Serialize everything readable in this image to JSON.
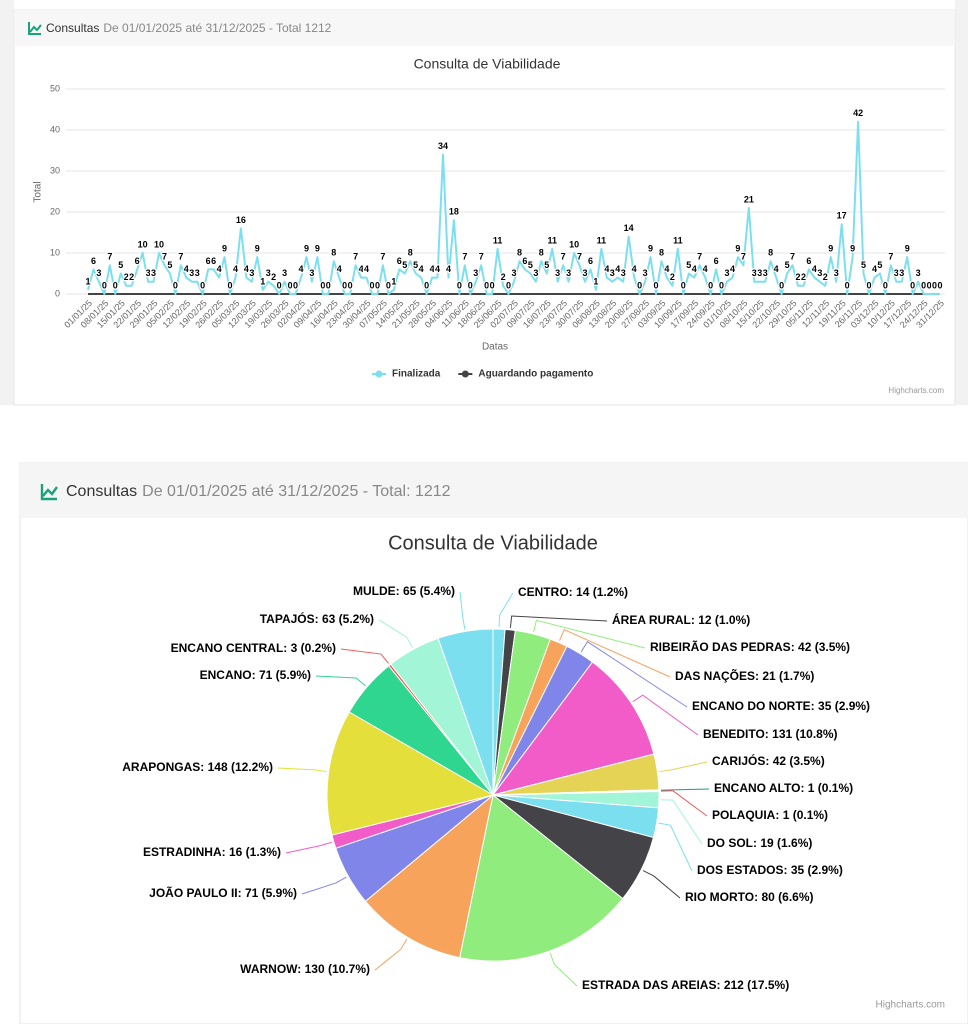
{
  "panels": [
    {
      "header": {
        "title": "Consultas",
        "subtitle": "De 01/01/2025 até 31/12/2025 - Total 1212"
      }
    },
    {
      "header": {
        "title": "Consultas",
        "subtitle": "De 01/01/2025 até 31/12/2025 - Total: 1212"
      }
    }
  ],
  "chart_data": [
    {
      "type": "line",
      "title": "Consulta de Viabilidade",
      "xlabel": "Datas",
      "ylabel": "Total",
      "categories": [
        "01/01/25",
        null,
        null,
        "08/01/25",
        null,
        null,
        "15/01/25",
        null,
        null,
        "22/01/25",
        null,
        null,
        "29/01/25",
        null,
        null,
        "05/02/25",
        null,
        null,
        "12/02/25",
        null,
        null,
        "19/02/25",
        null,
        null,
        "26/02/25",
        null,
        null,
        "05/03/25",
        null,
        null,
        "12/03/25",
        null,
        null,
        "19/03/25",
        null,
        null,
        "26/03/25",
        null,
        null,
        "02/04/25",
        null,
        null,
        "09/04/25",
        null,
        null,
        "16/04/25",
        null,
        null,
        "23/04/25",
        null,
        null,
        "30/04/25",
        null,
        null,
        "07/05/25",
        null,
        null,
        "14/05/25",
        null,
        null,
        "21/05/25",
        null,
        null,
        "28/05/25",
        null,
        null,
        "04/06/25",
        null,
        null,
        "11/06/25",
        null,
        null,
        "18/06/25",
        null,
        null,
        "25/06/25",
        null,
        null,
        "02/07/25",
        null,
        null,
        "09/07/25",
        null,
        null,
        "16/07/25",
        null,
        null,
        "23/07/25",
        null,
        null,
        "30/07/25",
        null,
        null,
        "06/08/25",
        null,
        null,
        "13/08/25",
        null,
        null,
        "20/08/25",
        null,
        null,
        "27/08/25",
        null,
        null,
        "03/09/25",
        null,
        null,
        "10/09/25",
        null,
        null,
        "17/09/25",
        null,
        null,
        "24/09/25",
        null,
        null,
        "01/10/25",
        null,
        null,
        "08/10/25",
        null,
        null,
        "15/10/25",
        null,
        null,
        "22/10/25",
        null,
        null,
        "29/10/25",
        null,
        null,
        "05/11/25",
        null,
        null,
        "12/11/25",
        null,
        null,
        "19/11/25",
        null,
        null,
        "26/11/25",
        null,
        null,
        "03/12/25",
        null,
        null,
        "10/12/25",
        null,
        null,
        "17/12/25",
        null,
        null,
        "24/12/25",
        null,
        null,
        "31/12/25"
      ],
      "series": [
        {
          "name": "Finalizada",
          "color": "#7cdfef",
          "values": [
            1,
            6,
            3,
            0,
            7,
            0,
            5,
            2,
            2,
            6,
            10,
            3,
            3,
            10,
            7,
            5,
            0,
            7,
            4,
            3,
            3,
            0,
            6,
            6,
            4,
            9,
            0,
            4,
            16,
            4,
            3,
            9,
            1,
            3,
            2,
            0,
            3,
            0,
            0,
            4,
            9,
            3,
            9,
            0,
            0,
            8,
            4,
            0,
            0,
            7,
            4,
            4,
            0,
            0,
            7,
            0,
            1,
            6,
            5,
            8,
            5,
            4,
            0,
            4,
            4,
            34,
            4,
            18,
            0,
            7,
            0,
            3,
            7,
            0,
            0,
            11,
            2,
            0,
            3,
            8,
            6,
            5,
            3,
            8,
            5,
            11,
            3,
            7,
            3,
            10,
            7,
            3,
            6,
            1,
            11,
            4,
            3,
            4,
            3,
            14,
            4,
            0,
            3,
            9,
            0,
            8,
            4,
            2,
            11,
            0,
            5,
            4,
            7,
            4,
            0,
            6,
            0,
            3,
            4,
            9,
            7,
            21,
            3,
            3,
            3,
            8,
            4,
            0,
            5,
            7,
            2,
            2,
            6,
            4,
            3,
            2,
            9,
            3,
            17,
            0,
            9,
            42,
            5,
            0,
            4,
            5,
            0,
            7,
            3,
            3,
            9,
            0,
            3,
            0,
            0,
            0,
            0
          ]
        },
        {
          "name": "Aguardando pagamento",
          "color": "#434348",
          "values": [
            0,
            0,
            0,
            0,
            0,
            0,
            0,
            0,
            0,
            0,
            0,
            0,
            0,
            0,
            0,
            0,
            0,
            0,
            0,
            0,
            0,
            0,
            0,
            0,
            0,
            0,
            0,
            0,
            0,
            0,
            0,
            0,
            0,
            0,
            0,
            0,
            0,
            0,
            0,
            0,
            0,
            0,
            0,
            0,
            0,
            0,
            0,
            0,
            0,
            0,
            0,
            0,
            0,
            0,
            0,
            0,
            0,
            0,
            0,
            0,
            0,
            0,
            0,
            0,
            0,
            0,
            0,
            0,
            0,
            0,
            0,
            0,
            0,
            0,
            0,
            0,
            0,
            0,
            0,
            0,
            0,
            0,
            0,
            0,
            0,
            0,
            0,
            0,
            0,
            0,
            0,
            0,
            0,
            0,
            0,
            0,
            0,
            0,
            0,
            0,
            0,
            0,
            0,
            0,
            0,
            0,
            0,
            0,
            0,
            0,
            0,
            0,
            0,
            0,
            0,
            0,
            0,
            0,
            0,
            0,
            0,
            0,
            0,
            0,
            0,
            0,
            0,
            0,
            0,
            0,
            0,
            0,
            0,
            0,
            0,
            0,
            0,
            0,
            0,
            0,
            0,
            0,
            0,
            0,
            0,
            0,
            0,
            0,
            0,
            0,
            0,
            0,
            0,
            0,
            0,
            0,
            0
          ]
        }
      ],
      "ylim": [
        0,
        50
      ],
      "yticks": [
        0,
        10,
        20,
        30,
        40,
        50
      ],
      "grid": true,
      "legend": "bottom",
      "credits": "Highcharts.com"
    },
    {
      "type": "pie",
      "title": "Consulta de Viabilidade",
      "categories": [
        "CENTRO",
        "ÁREA RURAL",
        "RIBEIRÃO DAS PEDRAS",
        "DAS NAÇÕES",
        "ENCANO DO NORTE",
        "BENEDITO",
        "CARIJÓS",
        "ENCANO ALTO",
        "POLAQUIA",
        "DO SOL",
        "DOS ESTADOS",
        "RIO MORTO",
        "ESTRADA DAS AREIAS",
        "WARNOW",
        "JOÃO PAULO II",
        "ESTRADINHA",
        "ARAPONGAS",
        "ENCANO",
        "ENCANO CENTRAL",
        "TAPAJÓS",
        "MULDE"
      ],
      "values": [
        14,
        12,
        42,
        21,
        35,
        131,
        42,
        1,
        1,
        19,
        35,
        80,
        212,
        130,
        71,
        16,
        148,
        71,
        3,
        63,
        65
      ],
      "value_labels": [
        "14 (1.2%)",
        "12 (1.0%)",
        "42 (3.5%)",
        "21 (1.7%)",
        "35 (2.9%)",
        "131 (10.8%)",
        "42 (3.5%)",
        "1 (0.1%)",
        "1 (0.1%)",
        "19 (1.6%)",
        "35 (2.9%)",
        "80 (6.6%)",
        "212 (17.5%)",
        "130 (10.7%)",
        "71 (5.9%)",
        "16 (1.3%)",
        "148 (12.2%)",
        "71 (5.9%)",
        "3 (0.2%)",
        "63 (5.2%)",
        "65 (5.4%)"
      ],
      "colors": [
        "#7cdfef",
        "#434348",
        "#90ed7d",
        "#f7a35c",
        "#8085e9",
        "#f15cc8",
        "#e4d354",
        "#2b908f",
        "#f45b5b",
        "#a3f5d8",
        "#7cdfef",
        "#434348",
        "#90ed7d",
        "#f7a35c",
        "#8085e9",
        "#f15cc8",
        "#e4df3a",
        "#2fd690",
        "#f45b5b",
        "#a3f5d8",
        "#7cdfef"
      ],
      "credits": "Highcharts.com"
    }
  ]
}
